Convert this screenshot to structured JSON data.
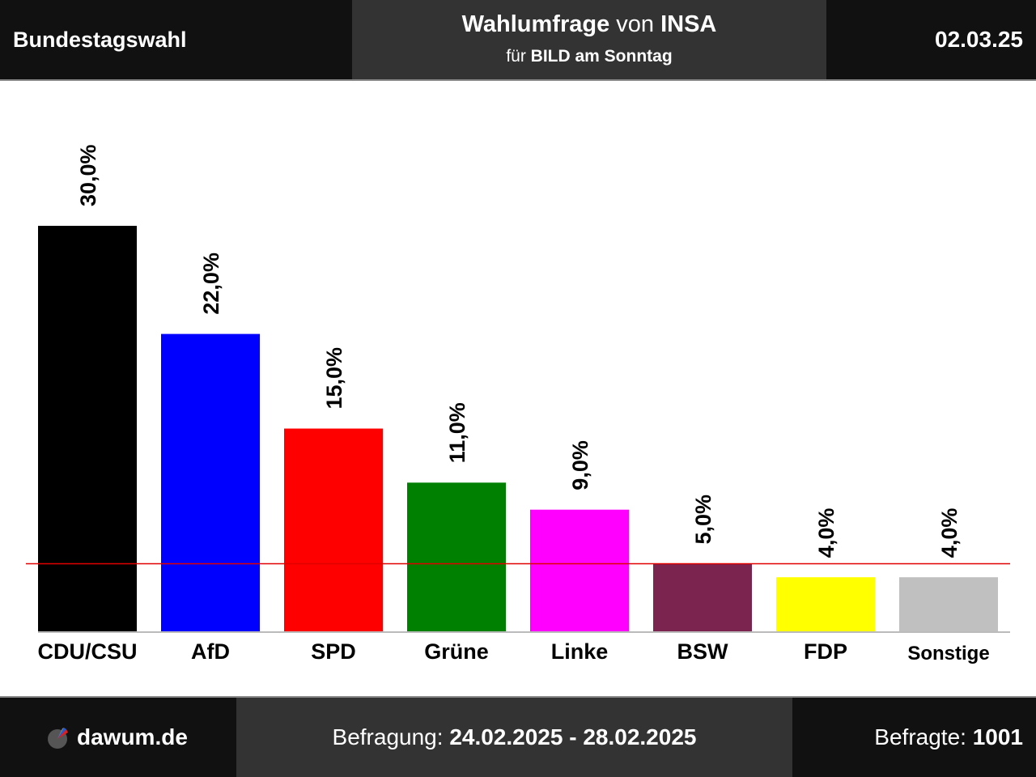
{
  "header": {
    "left": "Bundestagswahl",
    "title_bold1": "Wahlumfrage",
    "title_mid": " von ",
    "title_bold2": "INSA",
    "subtitle_pre": "für ",
    "subtitle_bold": "BILD am Sonntag",
    "date": "02.03.25"
  },
  "footer": {
    "logo_text": "dawum.de",
    "logo_icon": "dawum-logo-icon",
    "period_label": "Befragung: ",
    "period_value": "24.02.2025 - 28.02.2025",
    "respondents_label": "Befragte: ",
    "respondents_value": "1001"
  },
  "chart_data": {
    "type": "bar",
    "categories": [
      "CDU/CSU",
      "AfD",
      "SPD",
      "Grüne",
      "Linke",
      "BSW",
      "FDP",
      "Sonstige"
    ],
    "values": [
      30.0,
      22.0,
      15.0,
      11.0,
      9.0,
      5.0,
      4.0,
      4.0
    ],
    "value_labels": [
      "30,0%",
      "22,0%",
      "15,0%",
      "11,0%",
      "9,0%",
      "5,0%",
      "4,0%",
      "4,0%"
    ],
    "colors": [
      "#000000",
      "#0000ff",
      "#ff0000",
      "#008000",
      "#ff00ff",
      "#7b2450",
      "#ffff00",
      "#c0c0c0"
    ],
    "threshold": 5.0,
    "threshold_color": "#e00000",
    "ylim": [
      0,
      30
    ],
    "grid": false,
    "title": "",
    "xlabel": "",
    "ylabel": ""
  }
}
